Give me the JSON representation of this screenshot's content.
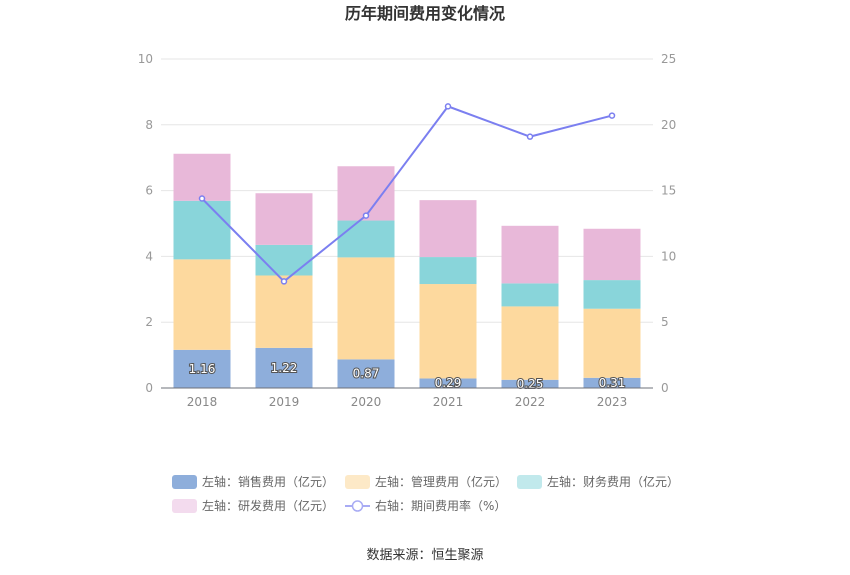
{
  "chart_data": {
    "type": "bar",
    "title": "历年期间费用变化情况",
    "categories": [
      "2018",
      "2019",
      "2020",
      "2021",
      "2022",
      "2023"
    ],
    "stacked": true,
    "y_left": {
      "min": 0,
      "max": 10,
      "ticks": [
        0,
        2,
        4,
        6,
        8,
        10
      ]
    },
    "y_right": {
      "min": 0,
      "max": 25,
      "ticks": [
        0,
        5,
        10,
        15,
        20,
        25
      ]
    },
    "series": [
      {
        "name": "左轴：销售费用（亿元）",
        "axis": "left",
        "kind": "bar",
        "color": "#8eaedb",
        "values": [
          1.16,
          1.22,
          0.87,
          0.29,
          0.25,
          0.31
        ],
        "labels": [
          "1.16",
          "1.22",
          "0.87",
          "0.29",
          "0.25",
          "0.31"
        ]
      },
      {
        "name": "左轴：管理费用（亿元）",
        "axis": "left",
        "kind": "bar",
        "color": "#fdd99e",
        "values": [
          2.75,
          2.2,
          3.1,
          2.87,
          2.23,
          2.1
        ]
      },
      {
        "name": "左轴：财务费用（亿元）",
        "axis": "left",
        "kind": "bar",
        "color": "#89d5da",
        "values": [
          1.78,
          0.93,
          1.12,
          0.82,
          0.7,
          0.87
        ]
      },
      {
        "name": "左轴：研发费用（亿元）",
        "axis": "left",
        "kind": "bar",
        "color": "#e8b8d9",
        "values": [
          1.43,
          1.57,
          1.65,
          1.73,
          1.75,
          1.56
        ]
      },
      {
        "name": "右轴：期间费用率（%）",
        "axis": "right",
        "kind": "line",
        "color": "#7b7ff0",
        "values": [
          14.4,
          8.1,
          13.1,
          21.4,
          19.1,
          20.7
        ]
      }
    ],
    "legend_position": "bottom",
    "grid": true
  },
  "source": "数据来源：恒生聚源"
}
